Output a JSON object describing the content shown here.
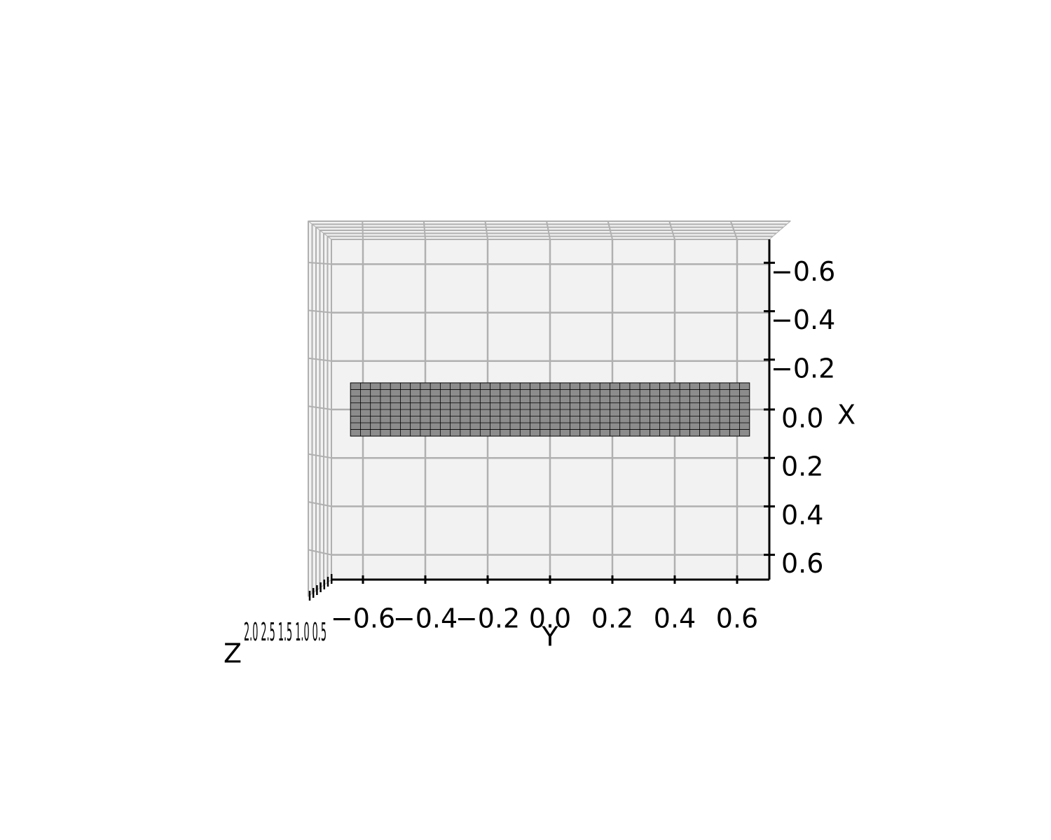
{
  "chart_data": {
    "type": "3d-surface",
    "title": "",
    "view": "top-down",
    "xlabel": "X",
    "ylabel": "Y",
    "zlabel": "Z",
    "grid": true,
    "xlim": [
      -0.7,
      0.7
    ],
    "ylim": [
      -0.7,
      0.7
    ],
    "x_ticks": [
      -0.6,
      -0.4,
      -0.2,
      0.0,
      0.2,
      0.4,
      0.6
    ],
    "x_tick_labels": [
      "−0.6",
      "−0.4",
      "−0.2",
      "0.0",
      "0.2",
      "0.4",
      "0.6"
    ],
    "y_ticks": [
      -0.6,
      -0.4,
      -0.2,
      0.0,
      0.2,
      0.4,
      0.6
    ],
    "y_tick_labels": [
      "−0.6",
      "−0.4",
      "−0.2",
      "0.0",
      "0.2",
      "0.4",
      "0.6"
    ],
    "z_tick_labels_overlapping": "2.0 2.5 1.5 1.0 0.5",
    "surface": {
      "y_range": [
        -0.64,
        0.64
      ],
      "x_range": [
        -0.11,
        0.11
      ],
      "grid_cols": 40,
      "grid_rows": 8,
      "face_color": "#8c8c8c",
      "edge_color": "#000000"
    },
    "colors": {
      "pane": "#f2f2f2",
      "gridline": "#b0b0b0",
      "axis": "#000000"
    }
  }
}
